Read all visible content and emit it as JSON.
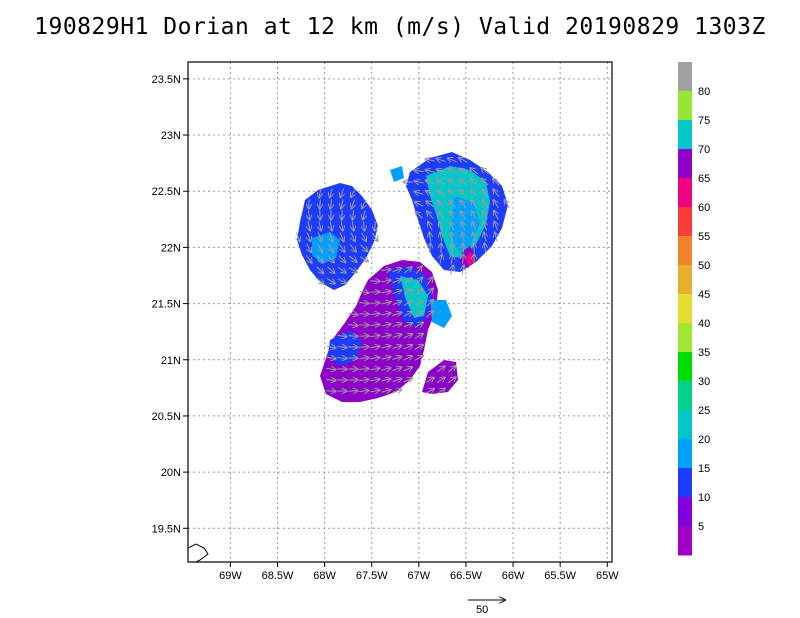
{
  "title": "190829H1  Dorian at 12 km (m/s) Valid 20190829  1303Z",
  "map": {
    "lat_range": [
      19.2,
      23.65
    ],
    "lon_range": [
      -69.45,
      -64.95
    ],
    "lat_ticks": [
      {
        "v": 19.5,
        "label": "19.5N"
      },
      {
        "v": 20,
        "label": "20N"
      },
      {
        "v": 20.5,
        "label": "20.5N"
      },
      {
        "v": 21,
        "label": "21N"
      },
      {
        "v": 21.5,
        "label": "21.5N"
      },
      {
        "v": 22,
        "label": "22N"
      },
      {
        "v": 22.5,
        "label": "22.5N"
      },
      {
        "v": 23,
        "label": "23N"
      },
      {
        "v": 23.5,
        "label": "23.5N"
      }
    ],
    "lon_ticks": [
      {
        "v": -69,
        "label": "69W"
      },
      {
        "v": -68.5,
        "label": "68.5W"
      },
      {
        "v": -68,
        "label": "68W"
      },
      {
        "v": -67.5,
        "label": "67.5W"
      },
      {
        "v": -67,
        "label": "67W"
      },
      {
        "v": -66.5,
        "label": "66.5W"
      },
      {
        "v": -66,
        "label": "66W"
      },
      {
        "v": -65.5,
        "label": "65.5W"
      },
      {
        "v": -65,
        "label": "65W"
      }
    ],
    "grid": true
  },
  "colorbar": {
    "labels": [
      "5",
      "10",
      "15",
      "20",
      "25",
      "30",
      "35",
      "40",
      "45",
      "50",
      "55",
      "60",
      "65",
      "70",
      "75",
      "80"
    ],
    "colors": [
      "#a000c8",
      "#8200dc",
      "#1e3cff",
      "#00a0ff",
      "#00c8c8",
      "#00d28c",
      "#00dc00",
      "#a0e632",
      "#e6dc32",
      "#e6af2d",
      "#f08228",
      "#fa3c3c",
      "#f00082",
      "#8c00c8",
      "#00c8c8",
      "#96e632",
      "#a0a0a0"
    ]
  },
  "vector_key": {
    "label": "50"
  },
  "legend_colors": {
    "blue": "#1e3cff",
    "purple": "#8c00c8",
    "cyan": "#00c8c8",
    "lightblue": "#00a0ff",
    "magenta": "#f00082",
    "arrow": "#a0a0a0"
  }
}
